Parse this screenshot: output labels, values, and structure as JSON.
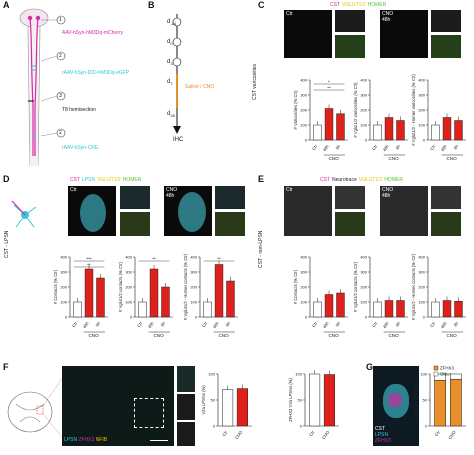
{
  "panels": {
    "A": {
      "label": "A",
      "steps": [
        "1",
        "2",
        "3",
        "2"
      ],
      "annotations": [
        "AAV-hSyn-hM3Dq-mCherry",
        "rAAV-hSyn-DIO-hM3Dq-eGFP",
        "T8 hemisection",
        "rAAV-hSyn-CRE"
      ]
    },
    "B": {
      "label": "B",
      "timeline": [
        "d",
        "d",
        "d",
        "d",
        "d"
      ],
      "timeline_sub": [
        "-14",
        "0",
        "3",
        "7",
        "28"
      ],
      "treatment": "Saline / CNO",
      "endpoint": "IHC"
    },
    "C": {
      "label": "C",
      "legend": [
        "CST",
        "VGLUT1/2",
        "HOMER"
      ],
      "images": [
        "Ctr",
        "CNO 48h"
      ],
      "side_label": "CST varicosities",
      "colors": {
        "ctr": "#ffffff",
        "cno": "#e0201b",
        "magenta": "#d62aa5",
        "green": "#5ec233"
      }
    },
    "D": {
      "label": "D",
      "legend": [
        "CST",
        "LPSN",
        "VGLUT1/2",
        "HOMER"
      ],
      "images": [
        "Ctr",
        "CNO 48h"
      ],
      "side_label": "CST - LPSN"
    },
    "E": {
      "label": "E",
      "legend": [
        "CST",
        "Neurotrace",
        "VGLUT1/2",
        "HOMER"
      ],
      "images": [
        "Ctr",
        "CNO 48h"
      ],
      "side_label": "CST - non-LPSN"
    },
    "F": {
      "label": "F",
      "legend": [
        "LPSN",
        "ZFHX3",
        "NFIB"
      ]
    },
    "G": {
      "label": "G",
      "legend": [
        "CST",
        "LPSN",
        "ZFHX3"
      ],
      "chart_legend": [
        "ZFHX3",
        "Other"
      ]
    }
  },
  "chart_data": [
    {
      "id": "C1",
      "type": "bar",
      "ylabel": "# Varicosities (% Ctr)",
      "categories": [
        "Ctr",
        "48h",
        "8h"
      ],
      "group_label": "CNO",
      "yticks": [
        0,
        100,
        200,
        300,
        400
      ],
      "ylim": [
        0,
        400
      ],
      "values": [
        100,
        210,
        175
      ],
      "colors": [
        "#ffffff",
        "#e0201b",
        "#e0201b"
      ],
      "sig": [
        "*",
        "**"
      ]
    },
    {
      "id": "C2",
      "type": "bar",
      "ylabel": "# Vglut1/2 varicosities (% Ctr)",
      "categories": [
        "Ctr",
        "48h",
        "8h"
      ],
      "group_label": "CNO",
      "yticks": [
        0,
        100,
        200,
        300,
        400
      ],
      "ylim": [
        0,
        400
      ],
      "values": [
        100,
        150,
        130
      ],
      "colors": [
        "#ffffff",
        "#e0201b",
        "#e0201b"
      ]
    },
    {
      "id": "C3",
      "type": "bar",
      "ylabel": "# Vglut1/2 - Homer varicosities (% Ctr)",
      "categories": [
        "Ctr",
        "48h",
        "8h"
      ],
      "group_label": "CNO",
      "yticks": [
        0,
        100,
        200,
        300,
        400
      ],
      "ylim": [
        0,
        400
      ],
      "values": [
        100,
        150,
        130
      ],
      "colors": [
        "#ffffff",
        "#e0201b",
        "#e0201b"
      ]
    },
    {
      "id": "D1",
      "type": "bar",
      "ylabel": "# Contacts (% Ctr)",
      "categories": [
        "Ctr",
        "48h",
        "8h"
      ],
      "group_label": "CNO",
      "yticks": [
        0,
        100,
        200,
        300,
        400
      ],
      "ylim": [
        0,
        400
      ],
      "values": [
        100,
        320,
        260
      ],
      "colors": [
        "#ffffff",
        "#e0201b",
        "#e0201b"
      ],
      "sig": [
        "***",
        "**"
      ]
    },
    {
      "id": "D2",
      "type": "bar",
      "ylabel": "# Vglut1/2 contacts (% Ctr)",
      "categories": [
        "Ctr",
        "48h",
        "8h"
      ],
      "group_label": "CNO",
      "yticks": [
        0,
        100,
        200,
        300,
        400
      ],
      "ylim": [
        0,
        400
      ],
      "values": [
        100,
        320,
        200
      ],
      "colors": [
        "#ffffff",
        "#e0201b",
        "#e0201b"
      ],
      "sig": [
        "**"
      ]
    },
    {
      "id": "D3",
      "type": "bar",
      "ylabel": "# Vglut1/2 - Homer contacts (% Ctr)",
      "categories": [
        "Ctr",
        "48h",
        "8h"
      ],
      "group_label": "CNO",
      "yticks": [
        0,
        100,
        200,
        300,
        400
      ],
      "ylim": [
        0,
        400
      ],
      "values": [
        100,
        350,
        240
      ],
      "colors": [
        "#ffffff",
        "#e0201b",
        "#e0201b"
      ],
      "sig": [
        "**"
      ]
    },
    {
      "id": "E1",
      "type": "bar",
      "ylabel": "# Contacts (% Ctr)",
      "categories": [
        "Ctr",
        "48h",
        "8h"
      ],
      "group_label": "CNO",
      "yticks": [
        0,
        100,
        200,
        300,
        400
      ],
      "ylim": [
        0,
        400
      ],
      "values": [
        100,
        150,
        160
      ],
      "colors": [
        "#ffffff",
        "#e0201b",
        "#e0201b"
      ]
    },
    {
      "id": "E2",
      "type": "bar",
      "ylabel": "# Vglut1/2 contacts (% Ctr)",
      "categories": [
        "Ctr",
        "48h",
        "8h"
      ],
      "group_label": "CNO",
      "yticks": [
        0,
        100,
        200,
        300,
        400
      ],
      "ylim": [
        0,
        400
      ],
      "values": [
        100,
        110,
        110
      ],
      "colors": [
        "#ffffff",
        "#e0201b",
        "#e0201b"
      ]
    },
    {
      "id": "E3",
      "type": "bar",
      "ylabel": "# Vglut1/2 - Homer contacts (% Ctr)",
      "categories": [
        "Ctr",
        "48h",
        "8h"
      ],
      "group_label": "CNO",
      "yticks": [
        0,
        100,
        200,
        300,
        400
      ],
      "ylim": [
        0,
        400
      ],
      "values": [
        100,
        110,
        105
      ],
      "colors": [
        "#ffffff",
        "#e0201b",
        "#e0201b"
      ]
    },
    {
      "id": "F1",
      "type": "bar",
      "ylabel": "V2a LPSNs (%)",
      "categories": [
        "Ctr",
        "CNO"
      ],
      "yticks": [
        0,
        50,
        100
      ],
      "ylim": [
        0,
        100
      ],
      "values": [
        70,
        72
      ],
      "colors": [
        "#ffffff",
        "#e0201b"
      ]
    },
    {
      "id": "F2",
      "type": "bar",
      "ylabel": "ZFHX3 V2a LPSNs (%)",
      "categories": [
        "Ctr",
        "CNO"
      ],
      "yticks": [
        0,
        50,
        100
      ],
      "ylim": [
        0,
        100
      ],
      "values": [
        100,
        99
      ],
      "colors": [
        "#ffffff",
        "#e0201b"
      ]
    },
    {
      "id": "G1",
      "type": "bar",
      "ylabel": "Contacted LPSNs (%)",
      "categories": [
        "Ctr",
        "CNO"
      ],
      "yticks": [
        0,
        50,
        100
      ],
      "ylim": [
        0,
        100
      ],
      "stacked": true,
      "series": [
        {
          "name": "ZFHX3",
          "values": [
            88,
            90
          ]
        },
        {
          "name": "Other",
          "values": [
            12,
            10
          ]
        }
      ],
      "colors": [
        "#e8902a",
        "#ffffff"
      ]
    }
  ]
}
